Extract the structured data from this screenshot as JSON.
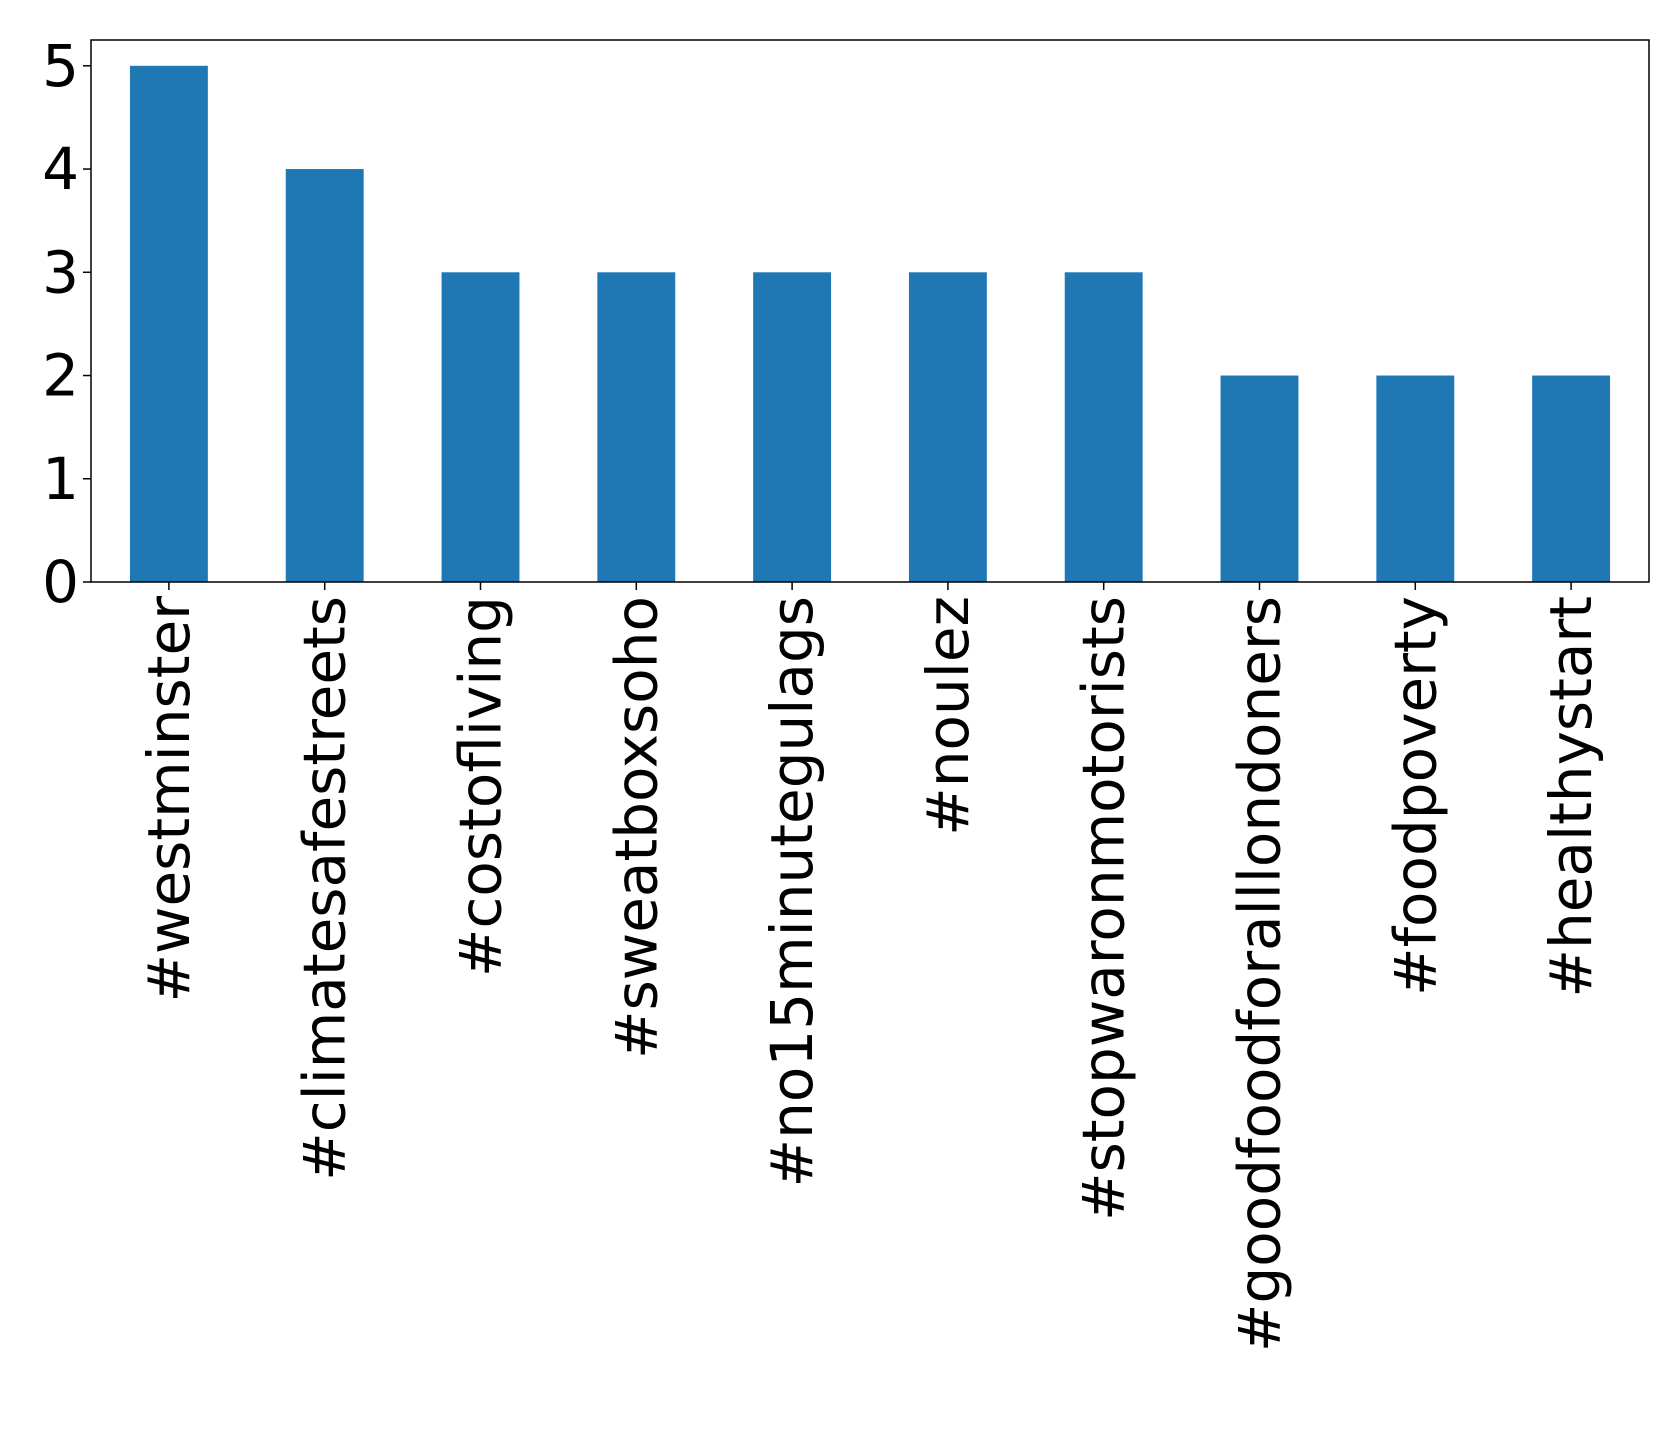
{
  "chart_data": {
    "type": "bar",
    "title": "",
    "xlabel": "",
    "ylabel": "",
    "categories": [
      "#westminster",
      "#climatesafestreets",
      "#costofliving",
      "#sweatboxsoho",
      "#no15minutegulags",
      "#noulez",
      "#stopwaronmotorists",
      "#goodfoodforalllondoners",
      "#foodpoverty",
      "#healthystart"
    ],
    "values": [
      5,
      4,
      3,
      3,
      3,
      3,
      3,
      2,
      2,
      2
    ],
    "ylim": [
      0,
      5.25
    ],
    "yticks": [
      0,
      1,
      2,
      3,
      4,
      5
    ],
    "grid": false,
    "legend": "none",
    "bar_color": "#1f77b4"
  }
}
